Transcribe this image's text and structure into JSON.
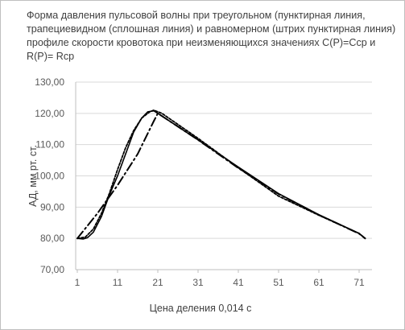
{
  "chart_data": {
    "type": "line",
    "title": "Форма давления пульсовой волны при треугольном (пунктирная линия, трапециевидном (сплошная линия) и равномерном (штрих пунктирная линия) профиле скорости кровотока при неизменяющихся значениях C(P)=Cср и R(P)= Rср",
    "xlabel": "Цена деления 0,014 с",
    "ylabel": "АД, мм рт. ст.",
    "xlim": [
      1,
      73
    ],
    "ylim": [
      70,
      130
    ],
    "x_ticks": [
      "1",
      "11",
      "21",
      "31",
      "41",
      "51",
      "61",
      "71"
    ],
    "y_ticks": [
      "70,00",
      "80,00",
      "90,00",
      "100,00",
      "110,00",
      "120,00",
      "130,00"
    ],
    "grid": "horizontal",
    "series": [
      {
        "style": "dotted",
        "color": "#000000",
        "x": [
          1,
          3,
          5,
          7,
          9,
          11,
          13,
          15,
          17,
          19,
          20,
          22,
          31,
          41,
          51,
          61,
          71,
          72.5
        ],
        "y": [
          80,
          80.4,
          83,
          88,
          94.5,
          102,
          109,
          114.5,
          118.5,
          120.5,
          121,
          120,
          112,
          102.6,
          93.5,
          87.4,
          81.6,
          80
        ]
      },
      {
        "style": "solid",
        "color": "#000000",
        "x": [
          1,
          2.5,
          3.5,
          5,
          7,
          9,
          11,
          13,
          15,
          17,
          18.5,
          20,
          21,
          31,
          41,
          51,
          61,
          71,
          72.5
        ],
        "y": [
          80,
          79.8,
          80.2,
          82,
          87,
          94,
          100,
          107,
          114,
          118.5,
          120.5,
          120.8,
          120,
          111.5,
          102.8,
          94.3,
          87.6,
          81.6,
          80
        ]
      },
      {
        "style": "dash-dot",
        "color": "#000000",
        "x": [
          1,
          6,
          11,
          16,
          20,
          21,
          31,
          41,
          51,
          61,
          71,
          72.5
        ],
        "y": [
          80,
          88,
          97,
          107,
          117.5,
          120,
          111.5,
          102.5,
          94.2,
          87.5,
          81.5,
          80
        ]
      }
    ]
  }
}
